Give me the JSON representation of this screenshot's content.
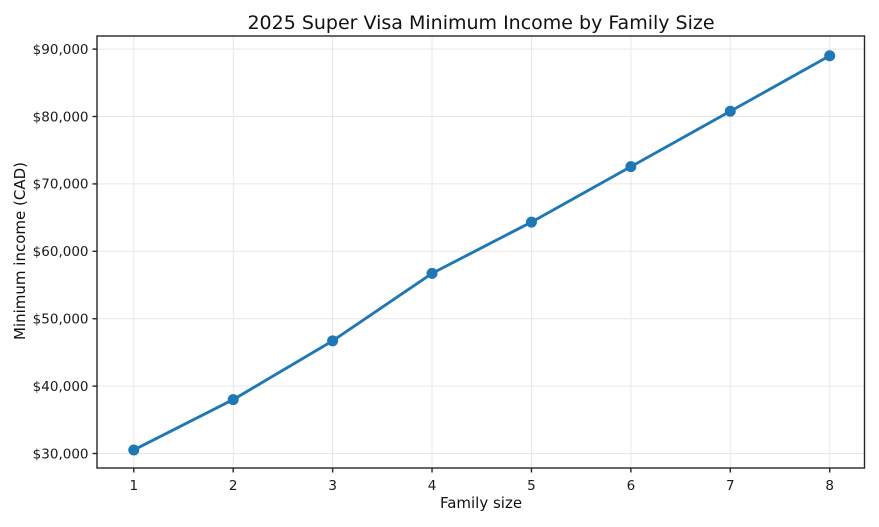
{
  "chart_data": {
    "type": "line",
    "title": "2025 Super Visa Minimum Income by Family Size",
    "xlabel": "Family size",
    "ylabel": "Minimum income (CAD)",
    "series": [
      {
        "name": "Minimum income (CAD)",
        "x": [
          1,
          2,
          3,
          4,
          5,
          6,
          7,
          8
        ],
        "y": [
          30527,
          38002,
          46720,
          56724,
          64336,
          72560,
          80785,
          89009
        ]
      }
    ],
    "x_ticks": {
      "values": [
        1,
        2,
        3,
        4,
        5,
        6,
        7,
        8
      ],
      "labels": [
        "1",
        "2",
        "3",
        "4",
        "5",
        "6",
        "7",
        "8"
      ]
    },
    "y_ticks": {
      "values": [
        30000,
        40000,
        50000,
        60000,
        70000,
        80000,
        90000
      ],
      "labels": [
        "$30,000",
        "$40,000",
        "$50,000",
        "$60,000",
        "$70,000",
        "$80,000",
        "$90,000"
      ]
    },
    "xlim": [
      0.63,
      8.35
    ],
    "ylim": [
      27850,
      91945
    ],
    "grid": true,
    "legend": "none",
    "marker": "circle",
    "colors": {
      "line": "#1f77b4",
      "grid": "#e7e7e7",
      "axis": "#262626",
      "text": "#1a1a1a",
      "background": "#ffffff"
    }
  }
}
